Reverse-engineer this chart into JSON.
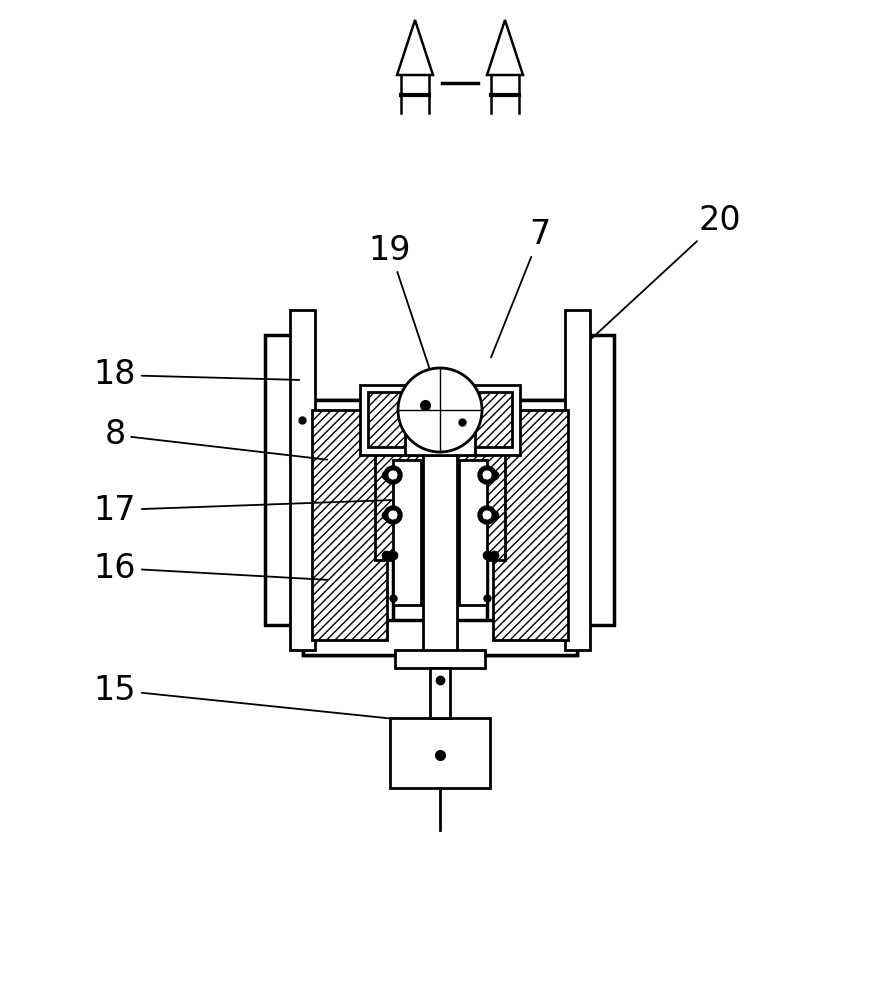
{
  "bg_color": "#ffffff",
  "lw_main": 2.0,
  "lw_thick": 2.5,
  "lw_thin": 1.0,
  "label_fontsize": 24,
  "fig_width": 8.79,
  "fig_height": 10.0,
  "dpi": 100
}
